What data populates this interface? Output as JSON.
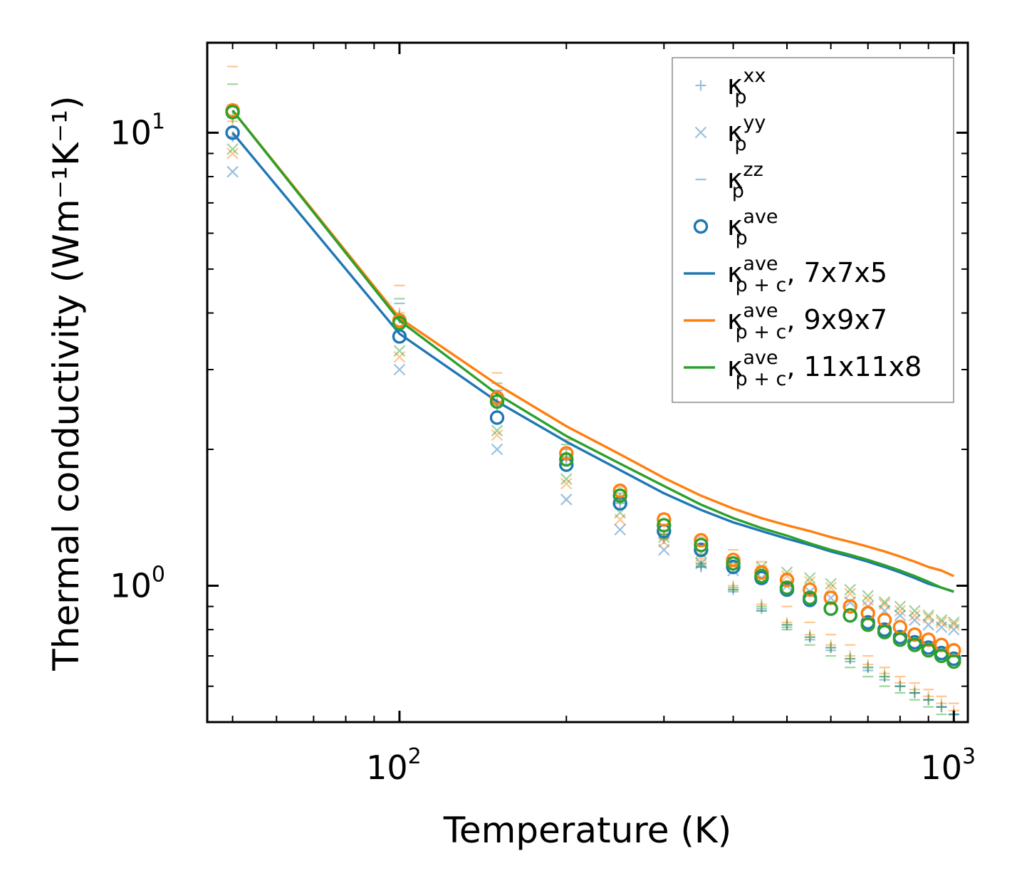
{
  "chart_data": {
    "type": "scatter",
    "title": "",
    "xlabel": "Temperature (K)",
    "ylabel": "Thermal conductivity (Wm⁻¹K⁻¹)",
    "xscale": "log",
    "yscale": "log",
    "xlim": [
      45,
      1060
    ],
    "ylim": [
      0.5,
      15.8
    ],
    "x_ticks": [
      {
        "value": 100,
        "base": "10",
        "exp": "2"
      },
      {
        "value": 1000,
        "base": "10",
        "exp": "3"
      }
    ],
    "y_ticks": [
      {
        "value": 1,
        "base": "10",
        "exp": "0"
      },
      {
        "value": 10,
        "base": "10",
        "exp": "1"
      }
    ],
    "legend_position": "top-right",
    "temperatures": [
      50,
      100,
      150,
      200,
      250,
      300,
      350,
      400,
      450,
      500,
      550,
      600,
      650,
      700,
      750,
      800,
      850,
      900,
      950,
      1000
    ],
    "component_series": [
      {
        "name": "k_xx",
        "label_base": "κ",
        "label_sub": "p",
        "label_sup": "xx",
        "marker": "plus",
        "groups": [
          {
            "set": "7x7x5",
            "color": "#1f77b4",
            "values": [
              9.8,
              3.9,
              2.5,
              1.9,
              1.52,
              1.27,
              1.1,
              0.98,
              0.89,
              0.82,
              0.77,
              0.73,
              0.69,
              0.66,
              0.63,
              0.6,
              0.58,
              0.56,
              0.54,
              0.52
            ]
          },
          {
            "set": "9x9x7",
            "color": "#ff7f0e",
            "values": [
              10.6,
              4.0,
              2.55,
              1.95,
              1.56,
              1.3,
              1.12,
              1.0,
              0.91,
              0.83,
              0.78,
              0.74,
              0.7,
              0.67,
              0.64,
              0.61,
              0.59,
              0.57,
              0.55,
              0.53
            ]
          },
          {
            "set": "11x11x8",
            "color": "#2ca02c",
            "values": [
              10.8,
              3.95,
              2.52,
              1.93,
              1.55,
              1.28,
              1.11,
              0.99,
              0.9,
              0.82,
              0.77,
              0.73,
              0.69,
              0.66,
              0.63,
              0.6,
              0.58,
              0.56,
              0.54,
              0.52
            ]
          }
        ]
      },
      {
        "name": "k_yy",
        "label_base": "κ",
        "label_sub": "p",
        "label_sup": "yy",
        "marker": "x",
        "groups": [
          {
            "set": "7x7x5",
            "color": "#1f77b4",
            "values": [
              8.2,
              3.0,
              2.0,
              1.55,
              1.33,
              1.2,
              1.12,
              1.08,
              1.04,
              1.0,
              0.97,
              0.94,
              0.92,
              0.9,
              0.88,
              0.86,
              0.84,
              0.82,
              0.81,
              0.8
            ]
          },
          {
            "set": "9x9x7",
            "color": "#ff7f0e",
            "values": [
              9.0,
              3.2,
              2.15,
              1.68,
              1.4,
              1.25,
              1.16,
              1.11,
              1.08,
              1.05,
              1.02,
              0.99,
              0.96,
              0.93,
              0.91,
              0.88,
              0.86,
              0.85,
              0.83,
              0.82
            ]
          },
          {
            "set": "11x11x8",
            "color": "#2ca02c",
            "values": [
              9.2,
              3.3,
              2.2,
              1.72,
              1.45,
              1.28,
              1.18,
              1.13,
              1.1,
              1.07,
              1.04,
              1.01,
              0.98,
              0.95,
              0.92,
              0.9,
              0.88,
              0.86,
              0.84,
              0.83
            ]
          }
        ]
      },
      {
        "name": "k_zz",
        "label_base": "κ",
        "label_sub": "p",
        "label_sup": "zz",
        "marker": "dash",
        "groups": [
          {
            "set": "7x7x5",
            "color": "#1f77b4",
            "values": [
              11.5,
              4.2,
              2.7,
              2.0,
              1.55,
              1.28,
              1.1,
              0.97,
              0.88,
              0.81,
              0.76,
              0.72,
              0.68,
              0.65,
              0.62,
              0.6,
              0.58,
              0.56,
              0.54,
              0.52
            ]
          },
          {
            "set": "9x9x7",
            "color": "#ff7f0e",
            "values": [
              14.0,
              4.6,
              2.95,
              2.1,
              1.65,
              1.44,
              1.28,
              1.2,
              1.13,
              0.9,
              0.83,
              0.78,
              0.74,
              0.7,
              0.66,
              0.63,
              0.61,
              0.59,
              0.57,
              0.55
            ]
          },
          {
            "set": "11x11x8",
            "color": "#2ca02c",
            "values": [
              12.8,
              4.3,
              2.8,
              2.05,
              1.6,
              1.3,
              1.12,
              0.98,
              0.88,
              0.8,
              0.74,
              0.7,
              0.66,
              0.63,
              0.6,
              0.58,
              0.56,
              0.54,
              0.52,
              0.5
            ]
          }
        ]
      }
    ],
    "average_series": {
      "name": "k_ave",
      "label_base": "κ",
      "label_sub": "p",
      "label_sup": "ave",
      "marker": "circle",
      "groups": [
        {
          "set": "7x7x5",
          "color": "#1f77b4",
          "values": [
            10.0,
            3.55,
            2.35,
            1.85,
            1.52,
            1.32,
            1.2,
            1.1,
            1.04,
            0.98,
            0.93,
            0.89,
            0.86,
            0.83,
            0.8,
            0.77,
            0.75,
            0.73,
            0.71,
            0.69
          ]
        },
        {
          "set": "9x9x7",
          "color": "#ff7f0e",
          "values": [
            11.2,
            3.85,
            2.6,
            1.96,
            1.62,
            1.4,
            1.26,
            1.14,
            1.07,
            1.03,
            0.98,
            0.94,
            0.9,
            0.87,
            0.84,
            0.81,
            0.78,
            0.76,
            0.74,
            0.72
          ]
        },
        {
          "set": "11x11x8",
          "color": "#2ca02c",
          "values": [
            11.1,
            3.8,
            2.55,
            1.9,
            1.58,
            1.36,
            1.23,
            1.12,
            1.05,
            0.99,
            0.94,
            0.89,
            0.86,
            0.82,
            0.79,
            0.76,
            0.74,
            0.72,
            0.7,
            0.68
          ]
        }
      ]
    },
    "line_series": [
      {
        "name": "7x7x5",
        "label_base": "κ",
        "label_sub": "p + c",
        "label_sup": "ave",
        "suffix": ", 7x7x5",
        "color": "#1f77b4",
        "values": [
          10.0,
          3.6,
          2.55,
          2.08,
          1.8,
          1.6,
          1.47,
          1.38,
          1.32,
          1.27,
          1.23,
          1.19,
          1.16,
          1.13,
          1.1,
          1.07,
          1.04,
          1.01,
          0.99,
          0.97
        ]
      },
      {
        "name": "9x9x7",
        "label_base": "κ",
        "label_sub": "p + c",
        "label_sup": "ave",
        "suffix": ", 9x9x7",
        "color": "#ff7f0e",
        "values": [
          11.2,
          3.9,
          2.78,
          2.25,
          1.95,
          1.73,
          1.58,
          1.48,
          1.41,
          1.36,
          1.32,
          1.28,
          1.25,
          1.22,
          1.19,
          1.16,
          1.13,
          1.1,
          1.08,
          1.05
        ]
      },
      {
        "name": "11x11x8",
        "label_base": "κ",
        "label_sub": "p + c",
        "label_sup": "ave",
        "suffix": ", 11x11x8",
        "color": "#2ca02c",
        "values": [
          11.2,
          3.85,
          2.65,
          2.14,
          1.86,
          1.66,
          1.51,
          1.41,
          1.34,
          1.29,
          1.24,
          1.2,
          1.17,
          1.14,
          1.11,
          1.08,
          1.05,
          1.02,
          0.99,
          0.97
        ]
      }
    ]
  }
}
